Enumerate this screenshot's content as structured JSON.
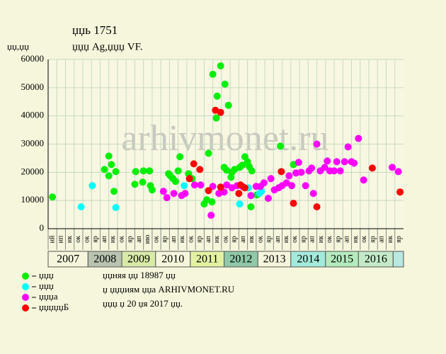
{
  "chart_data": {
    "type": "scatter",
    "title": "џџь 1751",
    "subtitle": "џџџ Ag,џџџ VF.",
    "y_label": "џџ,џџ",
    "watermark": "arhivmonet.ru",
    "notes": [
      "џџняя џџ 18987 џџ",
      "џ џџџиям џџа ARHIVMONET.RU",
      "џџџ џ 20 џя 2017 џџ."
    ],
    "years": [
      "2007",
      "2008",
      "2009",
      "2010",
      "2011",
      "2012",
      "2013",
      "2014",
      "2015",
      "2016"
    ],
    "columns": [
      "ий",
      "ип",
      "ик",
      "ок",
      "ок",
      "яр",
      "ап",
      "ик",
      "ок",
      "яр",
      "ап",
      "ию",
      "ок",
      "яр",
      "ап",
      "ик",
      "ок",
      "яр",
      "ап",
      "ик",
      "ок",
      "яр",
      "ап",
      "ик",
      "ок",
      "яр",
      "ап",
      "ик",
      "ок",
      "яр",
      "ап",
      "ик",
      "ок",
      "яр",
      "ап",
      "ик",
      "ок",
      "яр",
      "ап",
      "ик",
      "яр"
    ],
    "xlim": [
      0,
      41
    ],
    "ylim": [
      0,
      60000
    ],
    "yticks": [
      0,
      10000,
      20000,
      30000,
      40000,
      50000,
      60000
    ],
    "grid": true,
    "series": [
      {
        "name": "џџџ",
        "color": "#00ee00",
        "x": [
          0.5,
          5.1,
          6.5,
          7.0,
          7.3,
          7.0,
          7.6,
          7.8,
          10.0,
          10.1,
          10.9,
          11.0,
          11.7,
          11.8,
          12.0,
          13.9,
          14.1,
          14.4,
          14.7,
          15.0,
          15.2,
          16.2,
          16.6,
          18.0,
          18.3,
          18.5,
          18.9,
          19.0,
          19.4,
          19.5,
          19.9,
          20.3,
          20.4,
          20.6,
          20.8,
          21.1,
          21.2,
          21.5,
          22.1,
          22.4,
          22.7,
          23.0,
          23.2,
          23.4,
          23.5,
          24.1,
          26.8,
          28.3
        ],
        "values": [
          11250,
          15250,
          21000,
          25750,
          22750,
          18750,
          13250,
          20250,
          15750,
          20250,
          16500,
          20500,
          20500,
          15250,
          13750,
          19500,
          18750,
          17750,
          16750,
          20500,
          25500,
          19500,
          17750,
          8750,
          10250,
          26750,
          9500,
          54750,
          39250,
          47000,
          57750,
          21750,
          51250,
          20750,
          43750,
          18250,
          20000,
          21000,
          21750,
          22500,
          25500,
          23750,
          22000,
          7750,
          20500,
          12000,
          29250,
          22750
        ]
      },
      {
        "name": "џџџ",
        "color": "#00ffff",
        "x": [
          3.8,
          5.1,
          7.8,
          15.7,
          22.1,
          23.1,
          24.4,
          24.6
        ],
        "values": [
          7750,
          15250,
          7500,
          15250,
          8750,
          14500,
          12500,
          13250
        ]
      },
      {
        "name": "џџџа",
        "color": "#ff00ff",
        "x": [
          13.3,
          13.7,
          14.5,
          15.4,
          15.8,
          16.9,
          17.6,
          18.8,
          19.0,
          19.7,
          20.3,
          20.6,
          21.2,
          21.8,
          22.4,
          23.4,
          24.0,
          24.5,
          24.9,
          25.4,
          25.7,
          26.1,
          26.6,
          27.0,
          27.5,
          27.8,
          28.1,
          28.6,
          28.9,
          29.2,
          29.7,
          30.1,
          30.4,
          30.6,
          31.0,
          31.4,
          31.9,
          32.2,
          32.5,
          33.0,
          33.3,
          33.7,
          34.2,
          34.6,
          35.0,
          35.3,
          35.8,
          36.4,
          39.7,
          40.4
        ],
        "values": [
          13250,
          11000,
          12500,
          11750,
          12500,
          15500,
          15500,
          4750,
          15000,
          12500,
          13000,
          15500,
          14500,
          15250,
          15000,
          11750,
          15000,
          15000,
          16250,
          10750,
          17750,
          13750,
          14500,
          15250,
          16250,
          18750,
          15250,
          19750,
          23500,
          20000,
          15250,
          20500,
          21500,
          12500,
          30000,
          20500,
          21750,
          24000,
          20500,
          20500,
          23750,
          20500,
          23750,
          29000,
          23750,
          23250,
          32000,
          17250,
          21750,
          20250
        ]
      },
      {
        "name": "џџџџџБ",
        "color": "#ff0000",
        "x": [
          16.3,
          16.8,
          17.5,
          18.5,
          19.3,
          19.9,
          19.9,
          22.0,
          22.2,
          22.7,
          26.9,
          28.3,
          31.0,
          37.4,
          40.6
        ],
        "values": [
          17750,
          23000,
          21000,
          13500,
          42000,
          41250,
          14750,
          12500,
          15500,
          14500,
          20250,
          9000,
          7750,
          21500,
          13000
        ]
      }
    ]
  }
}
